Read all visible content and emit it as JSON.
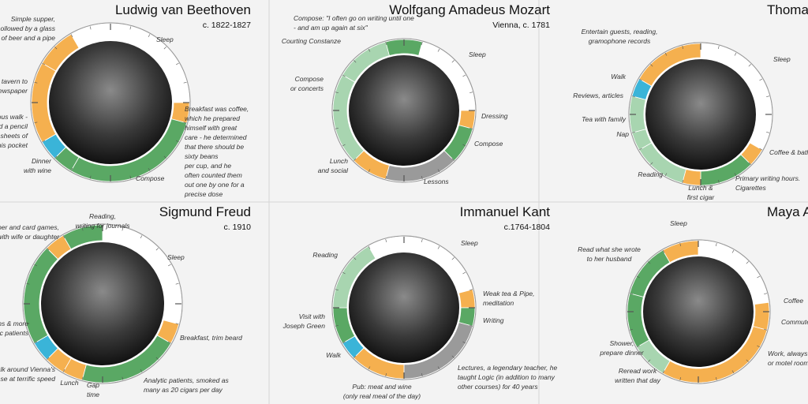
{
  "panels": [
    {
      "name": "Ludwig van Beethoven",
      "subtitle": "c. 1822-1827",
      "segments": [
        {
          "start": 22,
          "end": 6,
          "color": "#ffffff"
        },
        {
          "start": 6,
          "end": 7,
          "color": "#f5b04f"
        },
        {
          "start": 7,
          "end": 14,
          "color": "#5aa864"
        },
        {
          "start": 14,
          "end": 15,
          "color": "#5aa864"
        },
        {
          "start": 15,
          "end": 16,
          "color": "#3ab4d8"
        },
        {
          "start": 16,
          "end": 20,
          "color": "#f5b04f"
        },
        {
          "start": 20,
          "end": 22,
          "color": "#f5b04f"
        }
      ],
      "labels": [
        [
          "Simple supper,",
          "ollowed by a glass",
          "of beer and a pipe"
        ],
        [
          "tavern to",
          "ewspaper"
        ],
        [
          "ous walk -",
          "d a pencil",
          "sheets of",
          "his pocket"
        ],
        [
          "Dinner",
          "with wine"
        ],
        [
          "Sleep"
        ],
        [
          "Breakfast was coffee,",
          "which he prepared",
          "himself with great",
          "care - he determined",
          "that there should be",
          "sixty beans",
          "per cup, and he",
          "often counted them",
          "out one by one for a",
          "precise dose"
        ],
        [
          "Compose"
        ]
      ]
    },
    {
      "name": "Wolfgang Amadeus Mozart",
      "subtitle": "Vienna, c. 1781",
      "segments": [
        {
          "start": 23,
          "end": 1,
          "color": "#5aa864"
        },
        {
          "start": 1,
          "end": 6,
          "color": "#ffffff"
        },
        {
          "start": 6,
          "end": 7,
          "color": "#f5b04f"
        },
        {
          "start": 7,
          "end": 9,
          "color": "#5aa864"
        },
        {
          "start": 9,
          "end": 13,
          "color": "#9a9a9a"
        },
        {
          "start": 13,
          "end": 15,
          "color": "#f5b04f"
        },
        {
          "start": 15,
          "end": 20,
          "color": "#a8d5b0"
        },
        {
          "start": 20,
          "end": 23,
          "color": "#a8d5b0"
        }
      ],
      "labels": [
        [
          "Compose: \"I often go on writing until one",
          "- and am up again at six\""
        ],
        [
          "Courting Constanze"
        ],
        [
          "Sleep"
        ],
        [
          "Compose",
          "or concerts"
        ],
        [
          "Dressing"
        ],
        [
          "Compose"
        ],
        [
          "Lunch",
          "and social"
        ],
        [
          "Lessons"
        ]
      ]
    },
    {
      "name": "Thomas",
      "subtitle": "",
      "segments": [
        {
          "start": 0,
          "end": 8,
          "color": "#ffffff"
        },
        {
          "start": 8,
          "end": 9,
          "color": "#f5b04f"
        },
        {
          "start": 9,
          "end": 12,
          "color": "#5aa864"
        },
        {
          "start": 12,
          "end": 13,
          "color": "#f5b04f"
        },
        {
          "start": 13,
          "end": 16,
          "color": "#a8d5b0"
        },
        {
          "start": 16,
          "end": 17,
          "color": "#a8d5b0"
        },
        {
          "start": 17,
          "end": 19,
          "color": "#a8d5b0"
        },
        {
          "start": 19,
          "end": 20,
          "color": "#3ab4d8"
        },
        {
          "start": 20,
          "end": 24,
          "color": "#f5b04f"
        }
      ],
      "labels": [
        [
          "Entertain guests, reading,",
          "gramophone records"
        ],
        [
          "Sleep"
        ],
        [
          "Walk"
        ],
        [
          "Reviews, articles"
        ],
        [
          "Tea with family"
        ],
        [
          "Nap"
        ],
        [
          "Coffee & bath"
        ],
        [
          "Reading"
        ],
        [
          "Primary writing hours.",
          "Cigarettes"
        ],
        [
          "Lunch &",
          "first cigar"
        ]
      ]
    },
    {
      "name": "Sigmund Freud",
      "subtitle": "c. 1910",
      "segments": [
        {
          "start": 0,
          "end": 7,
          "color": "#ffffff"
        },
        {
          "start": 7,
          "end": 8,
          "color": "#f5b04f"
        },
        {
          "start": 8,
          "end": 13,
          "color": "#5aa864"
        },
        {
          "start": 13,
          "end": 14,
          "color": "#f5b04f"
        },
        {
          "start": 14,
          "end": 15,
          "color": "#f5b04f"
        },
        {
          "start": 15,
          "end": 16,
          "color": "#3ab4d8"
        },
        {
          "start": 16,
          "end": 21,
          "color": "#5aa864"
        },
        {
          "start": 21,
          "end": 22,
          "color": "#f5b04f"
        },
        {
          "start": 22,
          "end": 24,
          "color": "#5aa864"
        }
      ],
      "labels": [
        [
          "Reading,",
          "writing for journals"
        ],
        [
          "upper and card games,",
          "t with wife or daughter"
        ],
        [
          "Sleep"
        ],
        [
          "ns & more",
          "ic patients"
        ],
        [
          "Breakfast, trim beard"
        ],
        [
          "Walk around Vienna's",
          "se at terrific speed"
        ],
        [
          "Lunch"
        ],
        [
          "Gap",
          "time"
        ],
        [
          "Analytic patients, smoked as",
          "many as 20 cigars per day"
        ]
      ]
    },
    {
      "name": "Immanuel Kant",
      "subtitle": "c.1764-1804",
      "segments": [
        {
          "start": 22,
          "end": 5,
          "color": "#ffffff"
        },
        {
          "start": 5,
          "end": 6,
          "color": "#f5b04f"
        },
        {
          "start": 6,
          "end": 7,
          "color": "#5aa864"
        },
        {
          "start": 7,
          "end": 12,
          "color": "#9a9a9a"
        },
        {
          "start": 12,
          "end": 15,
          "color": "#f5b04f"
        },
        {
          "start": 15,
          "end": 16,
          "color": "#3ab4d8"
        },
        {
          "start": 16,
          "end": 18,
          "color": "#5aa864"
        },
        {
          "start": 18,
          "end": 22,
          "color": "#a8d5b0"
        }
      ],
      "labels": [
        [
          "Sleep"
        ],
        [
          "Reading"
        ],
        [
          "Weak tea & Pipe,",
          "meditation"
        ],
        [
          "Writing"
        ],
        [
          "Visit with",
          "Joseph Green"
        ],
        [
          "Walk"
        ],
        [
          "Lectures, a legendary teacher, he",
          "taught Logic (in addition to many",
          "other courses) for 40 years"
        ],
        [
          "Pub: meat and wine",
          "(only real meal of the day)"
        ]
      ]
    },
    {
      "name": "Maya A",
      "subtitle": "",
      "segments": [
        {
          "start": 0,
          "end": 5.5,
          "color": "#ffffff"
        },
        {
          "start": 5.5,
          "end": 7,
          "color": "#f5b04f"
        },
        {
          "start": 7,
          "end": 14,
          "color": "#f5b04f"
        },
        {
          "start": 14,
          "end": 16,
          "color": "#a8d5b0"
        },
        {
          "start": 16,
          "end": 19,
          "color": "#5aa864"
        },
        {
          "start": 19,
          "end": 22,
          "color": "#5aa864"
        },
        {
          "start": 22,
          "end": 24,
          "color": "#f5b04f"
        }
      ],
      "labels": [
        [
          "Sleep"
        ],
        [
          "Read what she wrote",
          "to her husband"
        ],
        [
          "Coffee"
        ],
        [
          "Commute"
        ],
        [
          "Shower,",
          "prepare dinner"
        ],
        [
          "Work, always in",
          "or motel rooms"
        ],
        [
          "Reread work",
          "written that day"
        ]
      ]
    }
  ]
}
